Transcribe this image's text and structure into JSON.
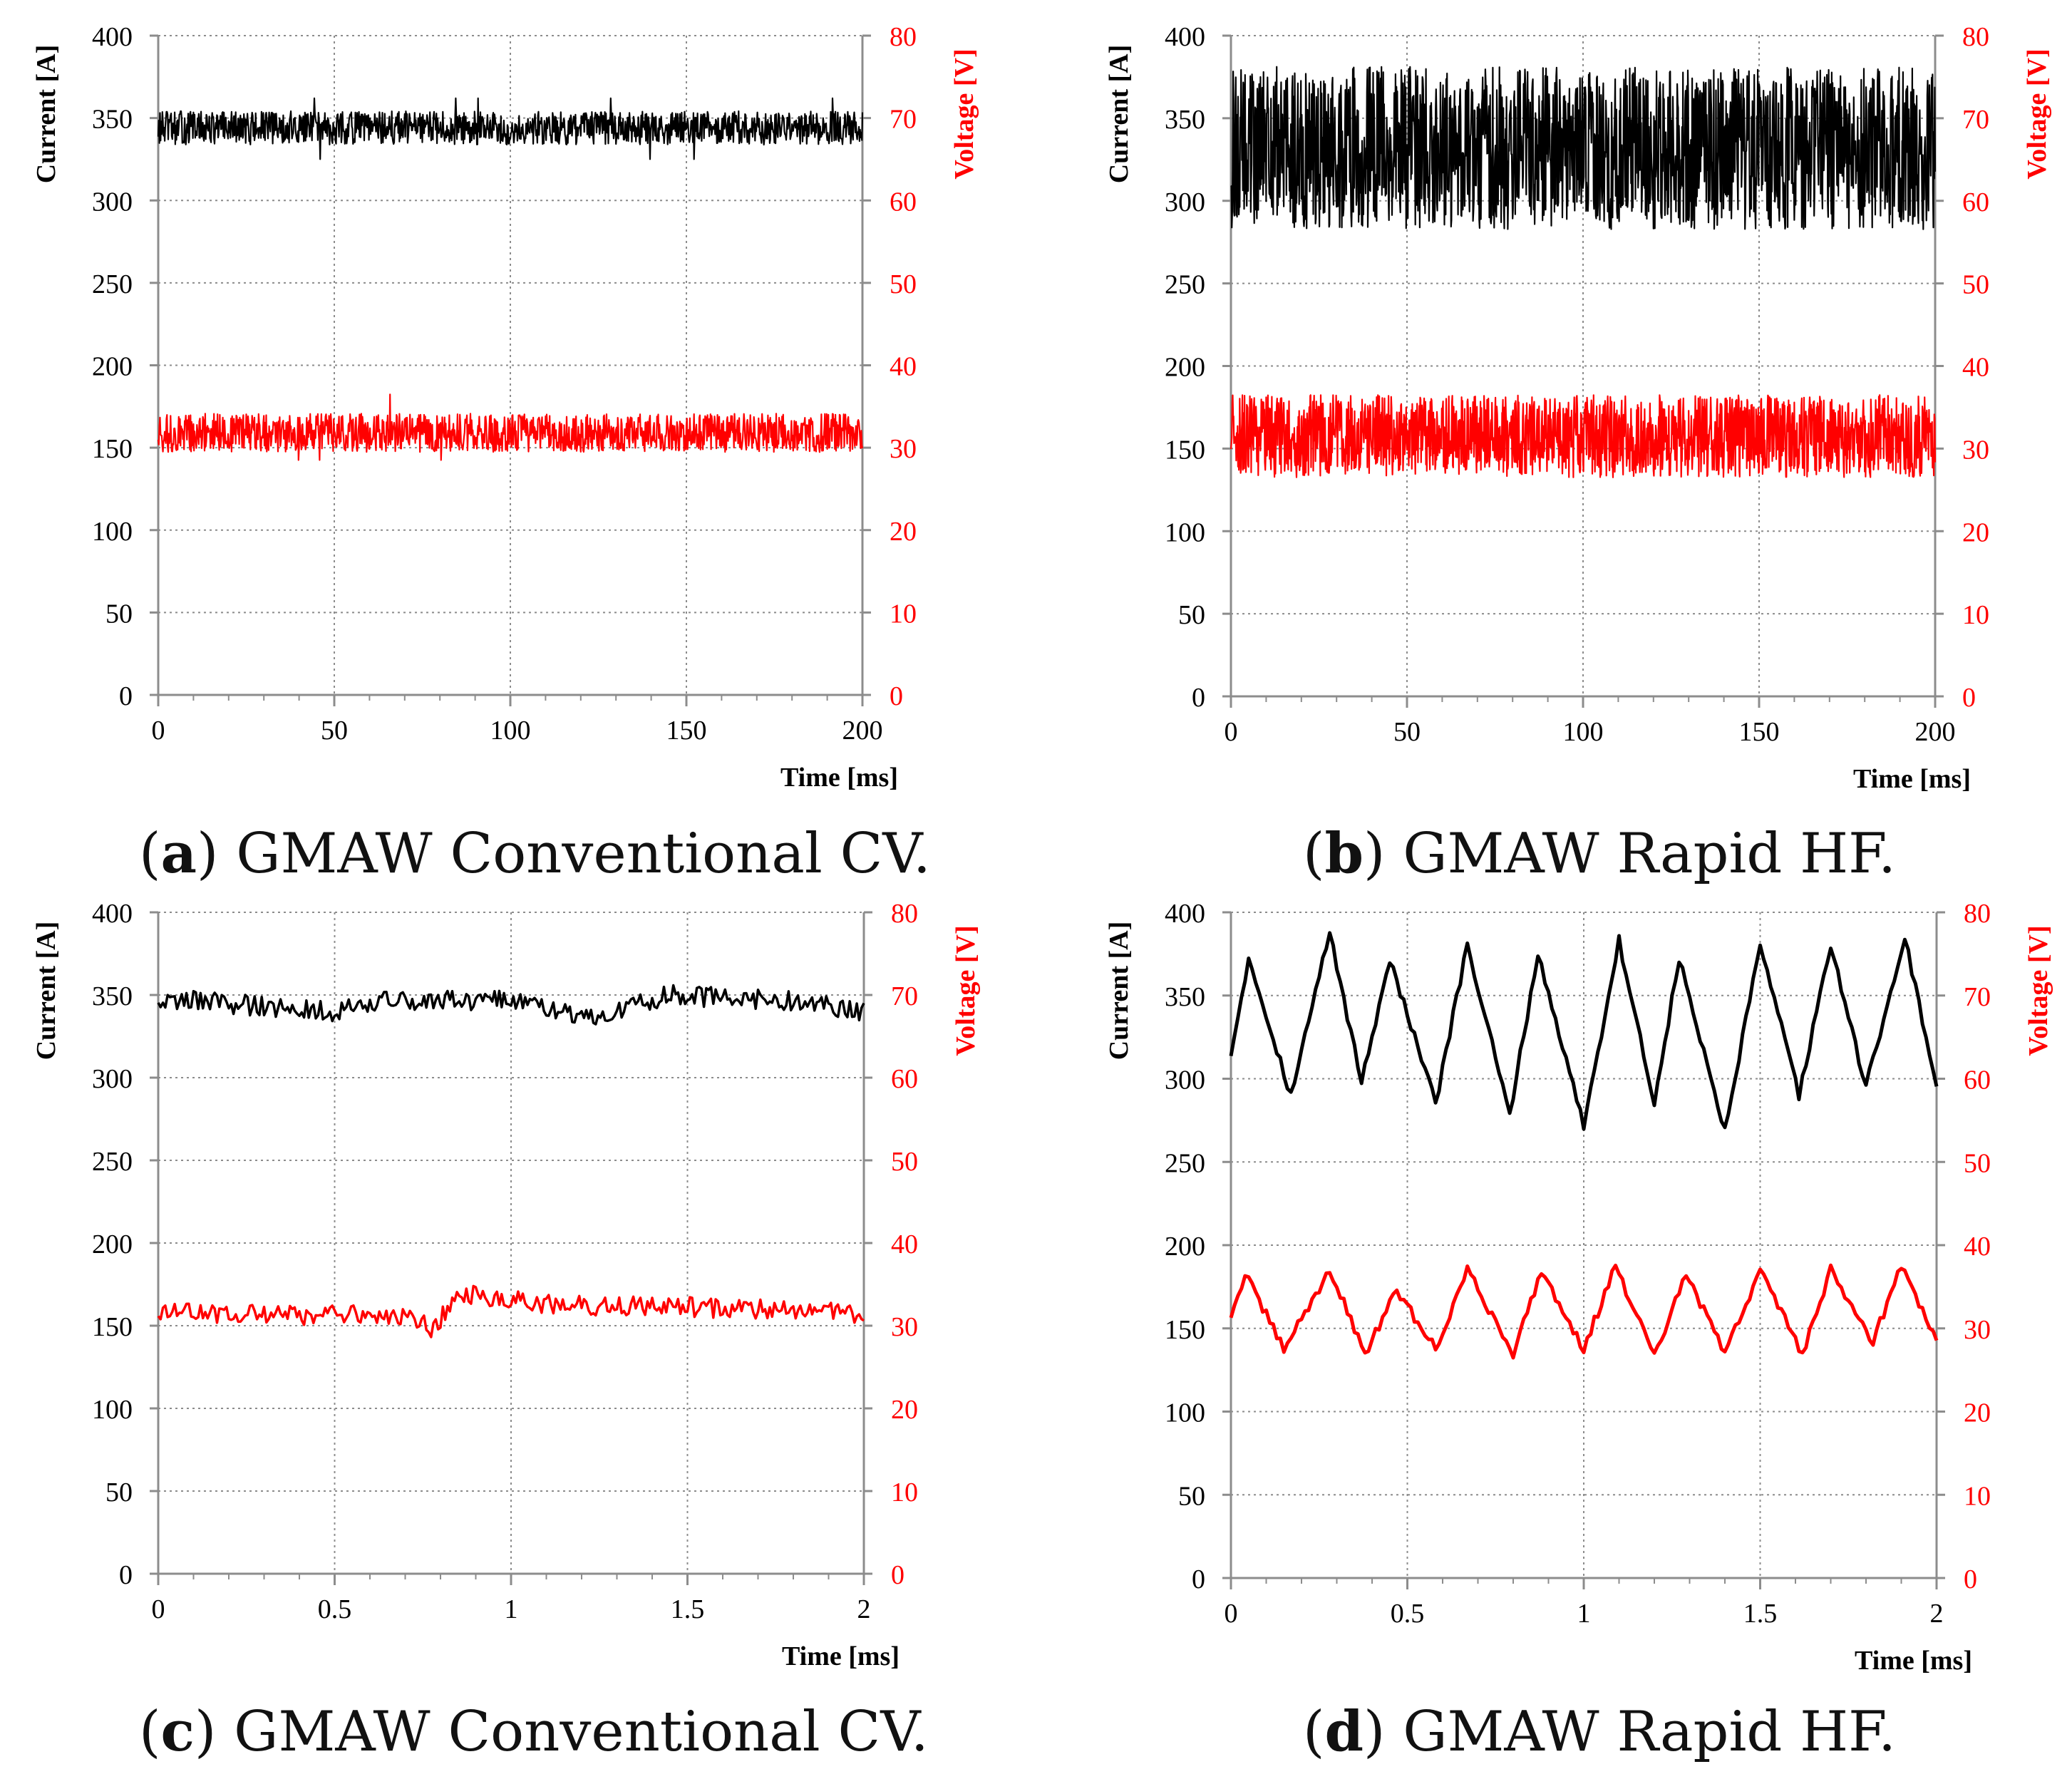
{
  "colors": {
    "current": "#000000",
    "voltage": "#ff0000",
    "grid": "#8c8c8c",
    "axis": "#8c8c8c"
  },
  "panels": [
    {
      "id": "a",
      "caption_prefix": "(",
      "caption_letter": "a",
      "caption_text": ") GMAW Conventional CV."
    },
    {
      "id": "b",
      "caption_prefix": "(",
      "caption_letter": "b",
      "caption_text": ") GMAW Rapid HF."
    },
    {
      "id": "c",
      "caption_prefix": "(",
      "caption_letter": "c",
      "caption_text": ") GMAW Conventional CV."
    },
    {
      "id": "d",
      "caption_prefix": "(",
      "caption_letter": "d",
      "caption_text": ") GMAW Rapid HF."
    }
  ],
  "chart_data": [
    {
      "type": "line",
      "panel": "a",
      "mode": "noise_flat",
      "xlabel": "Time [ms]",
      "ylabel_left": "Current [A]",
      "ylabel_right": "Voltage [V]",
      "xlim": [
        0,
        200
      ],
      "ylim_left": [
        0,
        400
      ],
      "ylim_right": [
        0,
        80
      ],
      "xticks": [
        "0",
        "50",
        "100",
        "150",
        "200"
      ],
      "xtick_values": [
        0,
        50,
        100,
        150,
        200
      ],
      "yticks_left": [
        "0",
        "50",
        "100",
        "150",
        "200",
        "250",
        "300",
        "350",
        "400"
      ],
      "yticks_right": [
        "0",
        "10",
        "20",
        "30",
        "40",
        "50",
        "60",
        "70",
        "80"
      ],
      "series": [
        {
          "name": "Current",
          "axis": "left",
          "mean": 344,
          "min": 325,
          "max": 362,
          "samples": 1200
        },
        {
          "name": "Voltage",
          "axis": "right",
          "mean": 31.8,
          "min": 28.5,
          "max": 37,
          "samples": 1200
        }
      ]
    },
    {
      "type": "line",
      "panel": "b",
      "mode": "noise_wide",
      "xlabel": "Time [ms]",
      "ylabel_left": "Current [A]",
      "ylabel_right": "Voltage [V]",
      "xlim": [
        0,
        200
      ],
      "ylim_left": [
        0,
        400
      ],
      "ylim_right": [
        0,
        80
      ],
      "xticks": [
        "0",
        "50",
        "100",
        "150",
        "200"
      ],
      "xtick_values": [
        0,
        50,
        100,
        150,
        200
      ],
      "yticks_left": [
        "0",
        "50",
        "100",
        "150",
        "200",
        "250",
        "300",
        "350",
        "400"
      ],
      "yticks_right": [
        "0",
        "10",
        "20",
        "30",
        "40",
        "50",
        "60",
        "70",
        "80"
      ],
      "series": [
        {
          "name": "Current",
          "axis": "left",
          "mean": 332,
          "min": 272,
          "max": 395,
          "samples": 1600
        },
        {
          "name": "Voltage",
          "axis": "right",
          "mean": 31.5,
          "min": 26.5,
          "max": 39,
          "samples": 1600
        }
      ]
    },
    {
      "type": "line",
      "panel": "c",
      "mode": "noise_wander",
      "xlabel": "Time [ms]",
      "ylabel_left": "Current [A]",
      "ylabel_right": "Voltage [V]",
      "xlim": [
        0,
        2
      ],
      "ylim_left": [
        0,
        400
      ],
      "ylim_right": [
        0,
        80
      ],
      "xticks": [
        "0",
        "0.5",
        "1",
        "1.5",
        "2"
      ],
      "xtick_values": [
        0,
        0.5,
        1,
        1.5,
        2
      ],
      "yticks_left": [
        "0",
        "50",
        "100",
        "150",
        "200",
        "250",
        "300",
        "350",
        "400"
      ],
      "yticks_right": [
        "0",
        "10",
        "20",
        "30",
        "40",
        "50",
        "60",
        "70",
        "80"
      ],
      "series": [
        {
          "name": "Current",
          "axis": "left",
          "mean": 345,
          "min": 325,
          "max": 360,
          "samples": 300,
          "trend_x": [
            0,
            0.5,
            0.6,
            1.0,
            1.2,
            1.45,
            1.8,
            2.0
          ],
          "trend_y": [
            348,
            340,
            346,
            347,
            336,
            350,
            346,
            340
          ]
        },
        {
          "name": "Voltage",
          "axis": "right",
          "mean": 32,
          "min": 28,
          "max": 35,
          "samples": 300,
          "trend_x": [
            0,
            0.7,
            0.78,
            0.85,
            1.1,
            1.5,
            2.0
          ],
          "trend_y": [
            31.5,
            31.2,
            29.5,
            34.0,
            32.5,
            32.3,
            31.5
          ]
        }
      ]
    },
    {
      "type": "line",
      "panel": "d",
      "mode": "keypoints",
      "xlabel": "Time [ms]",
      "ylabel_left": "Current [A]",
      "ylabel_right": "Voltage [V]",
      "xlim": [
        0,
        2
      ],
      "ylim_left": [
        0,
        400
      ],
      "ylim_right": [
        0,
        80
      ],
      "xticks": [
        "0",
        "0.5",
        "1",
        "1.5",
        "2"
      ],
      "xtick_values": [
        0,
        0.5,
        1,
        1.5,
        2
      ],
      "yticks_left": [
        "0",
        "50",
        "100",
        "150",
        "200",
        "250",
        "300",
        "350",
        "400"
      ],
      "yticks_right": [
        "0",
        "10",
        "20",
        "30",
        "40",
        "50",
        "60",
        "70",
        "80"
      ],
      "series": [
        {
          "name": "Current",
          "axis": "left",
          "x": [
            0,
            0.05,
            0.17,
            0.28,
            0.37,
            0.45,
            0.58,
            0.67,
            0.79,
            0.87,
            1.0,
            1.1,
            1.2,
            1.27,
            1.4,
            1.5,
            1.61,
            1.7,
            1.8,
            1.91,
            2.0
          ],
          "y": [
            315,
            373,
            290,
            388,
            298,
            372,
            285,
            380,
            278,
            375,
            272,
            383,
            285,
            372,
            268,
            380,
            290,
            380,
            295,
            385,
            295
          ]
        },
        {
          "name": "Voltage",
          "axis": "right",
          "x": [
            0,
            0.04,
            0.15,
            0.28,
            0.38,
            0.47,
            0.58,
            0.67,
            0.8,
            0.88,
            1.0,
            1.09,
            1.2,
            1.29,
            1.4,
            1.5,
            1.62,
            1.7,
            1.82,
            1.9,
            2.0
          ],
          "y": [
            31.5,
            36.5,
            27.5,
            37,
            27,
            34.5,
            27.5,
            37,
            27,
            37,
            27.5,
            37.5,
            26.5,
            36.5,
            27,
            37,
            27,
            37,
            28.5,
            37.5,
            28.5
          ]
        }
      ]
    }
  ]
}
